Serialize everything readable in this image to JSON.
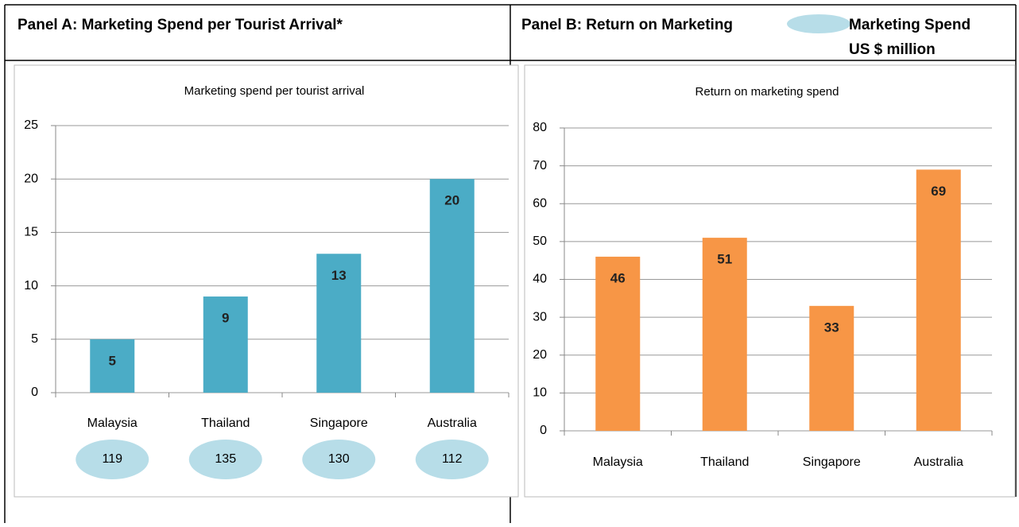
{
  "table": {
    "panel_a": "Panel A: Marketing Spend per Tourist Arrival*",
    "panel_b": "Panel B: Return on Marketing",
    "legend_line1": "Marketing Spend",
    "legend_line2": "US $ million"
  },
  "chart_data": [
    {
      "type": "bar",
      "title": "Marketing spend per tourist arrival",
      "categories": [
        "Malaysia",
        "Thailand",
        "Singapore",
        "Australia"
      ],
      "values": [
        5,
        9,
        13,
        20
      ],
      "color": "#4bacc6",
      "ylim": [
        0,
        25
      ],
      "yticks": [
        0,
        5,
        10,
        15,
        20,
        25
      ],
      "grid": true,
      "marketing_spend": [
        119,
        135,
        130,
        112
      ],
      "marketing_spend_color": "#b7dde8"
    },
    {
      "type": "bar",
      "title": "Return on marketing spend",
      "categories": [
        "Malaysia",
        "Thailand",
        "Singapore",
        "Australia"
      ],
      "values": [
        46,
        51,
        33,
        69
      ],
      "color": "#f79646",
      "ylim": [
        0,
        80
      ],
      "yticks": [
        0,
        10,
        20,
        30,
        40,
        50,
        60,
        70,
        80
      ],
      "grid": true
    }
  ]
}
